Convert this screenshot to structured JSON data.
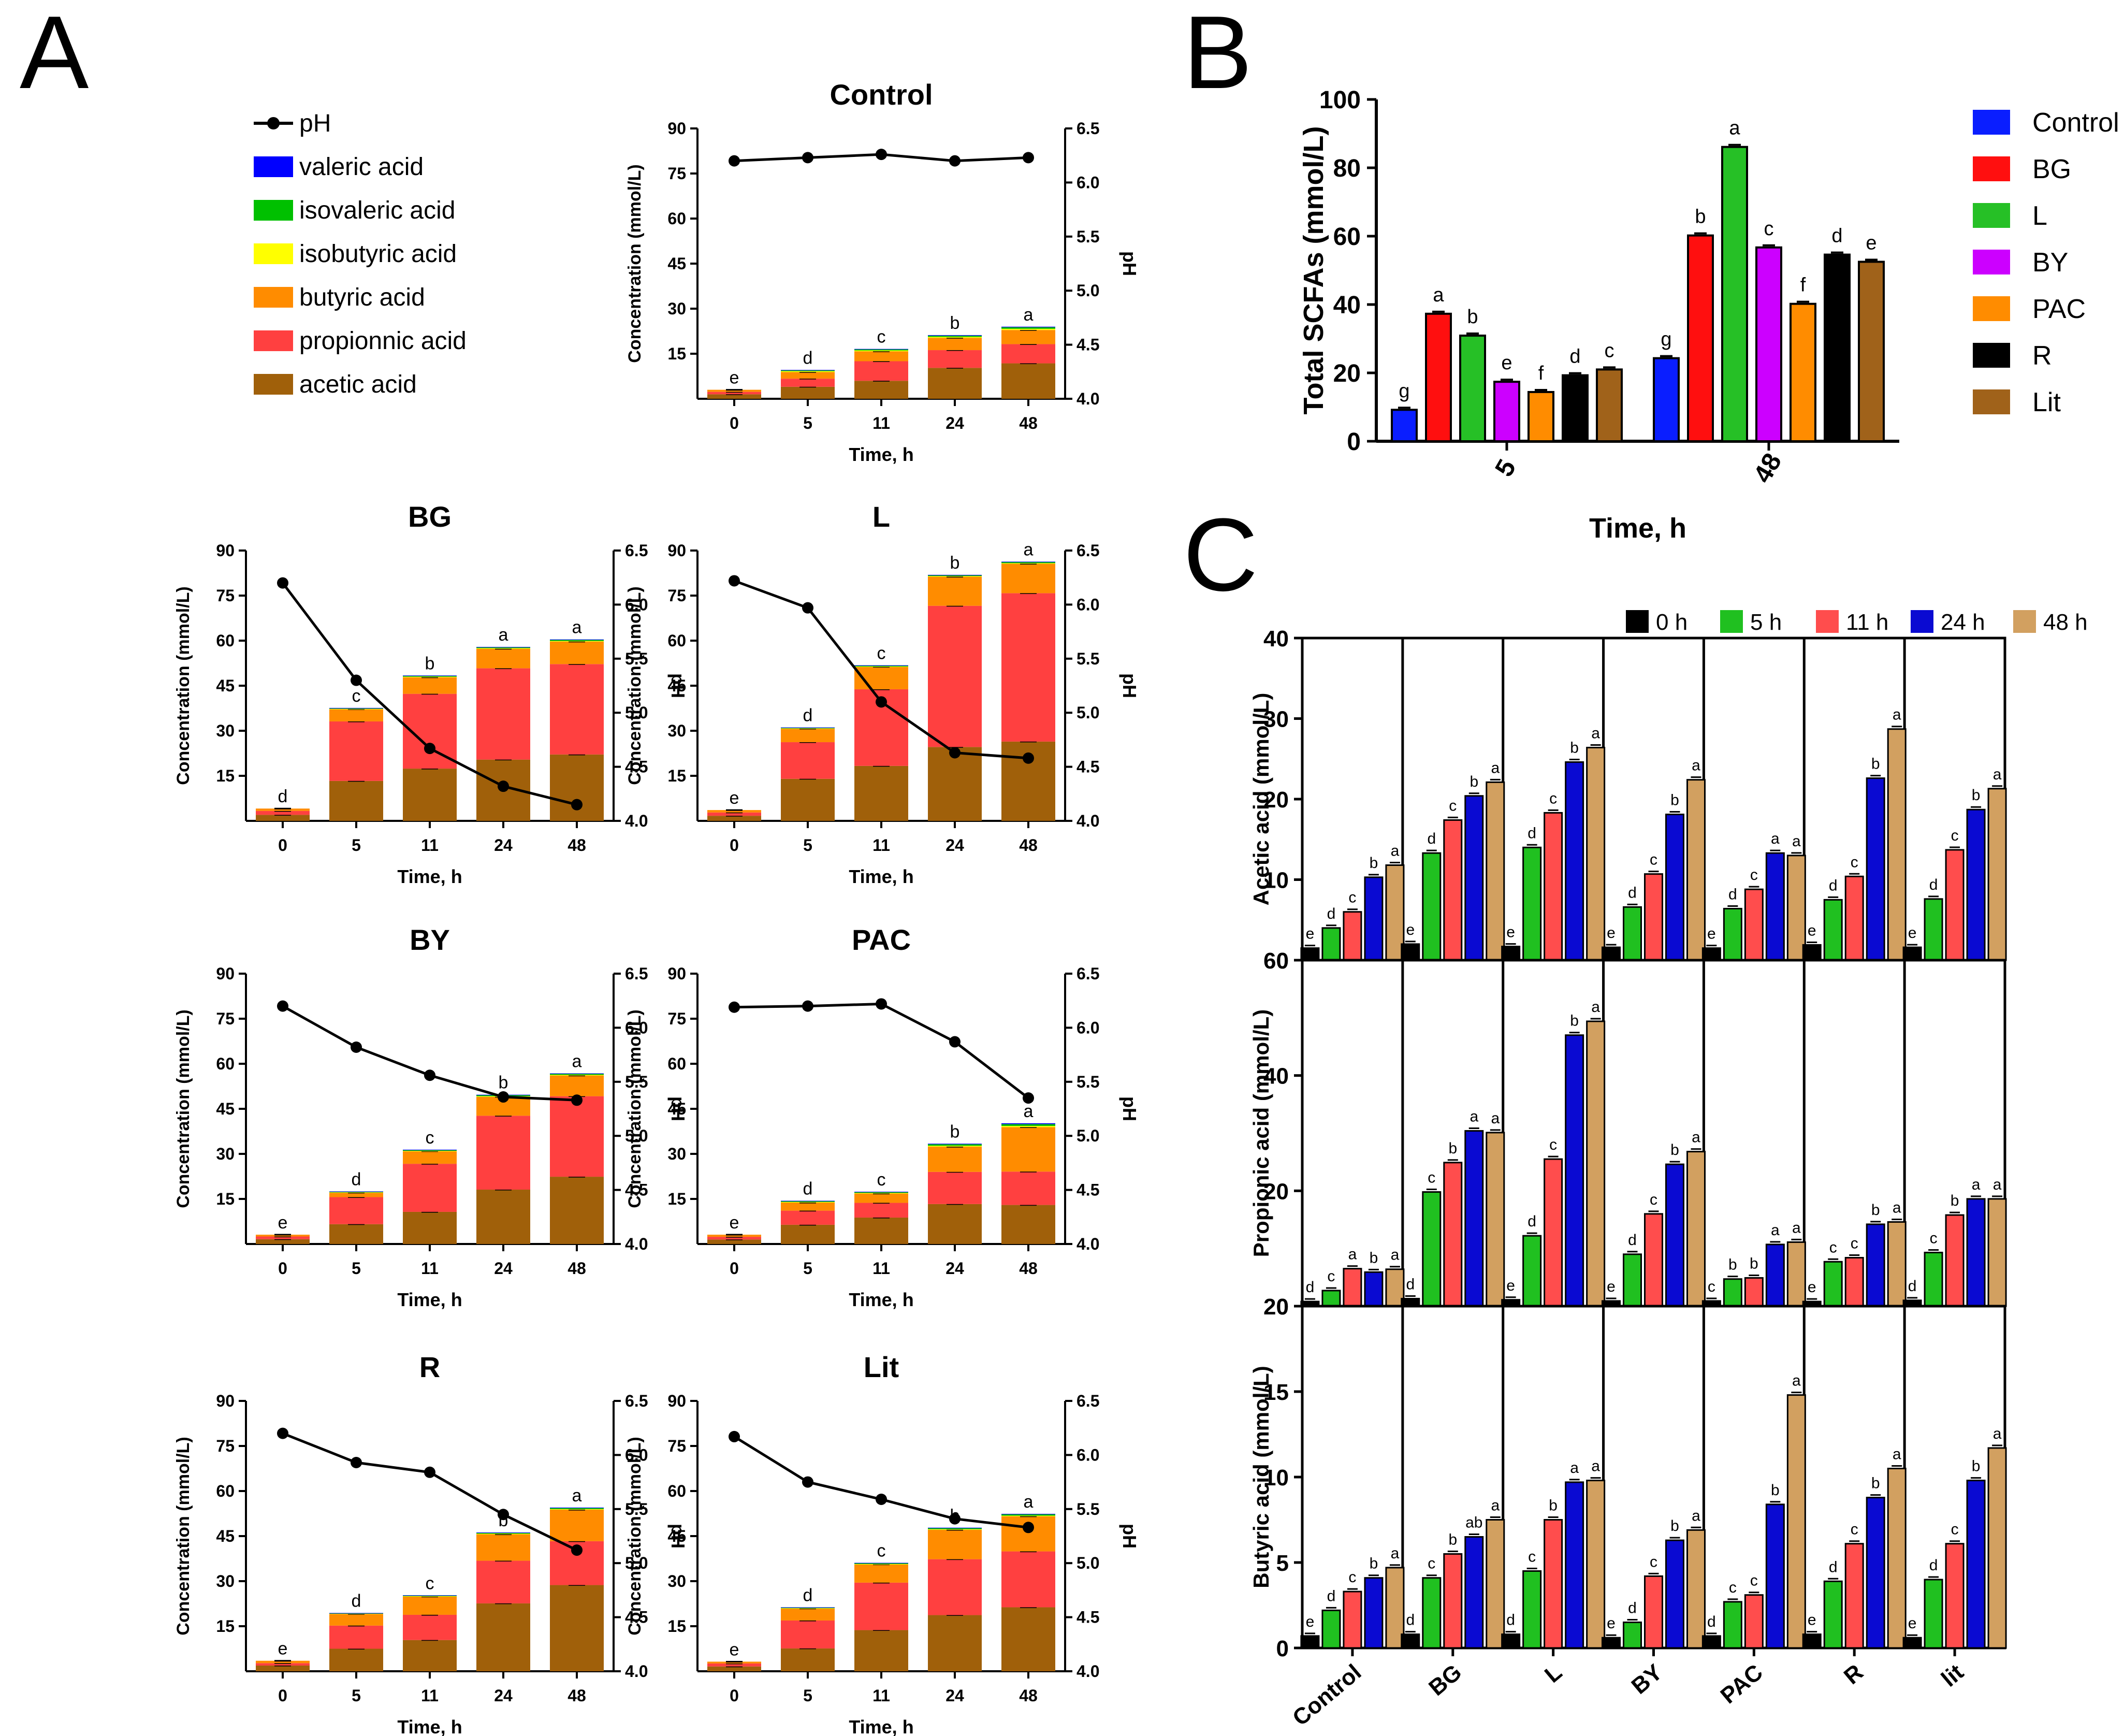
{
  "figure": {
    "panel_labels": [
      "A",
      "B",
      "C"
    ]
  },
  "colors": {
    "valeric": "#0000ff",
    "isovaleric": "#00c000",
    "isobutyric": "#ffff00",
    "butyric": "#ff8c00",
    "propionic": "#ff4040",
    "acetic": "#a0600a",
    "ph": "#000000",
    "B_series": [
      "#0a1eff",
      "#ff0f0f",
      "#26c026",
      "#cc00ff",
      "#ff8c00",
      "#000000",
      "#a0621a"
    ],
    "C_series": [
      "#000000",
      "#20c020",
      "#ff4d4d",
      "#0a0ad2",
      "#d2a060"
    ]
  },
  "legend_A": [
    {
      "key": "ph",
      "label": "pH"
    },
    {
      "key": "valeric",
      "label": "valeric acid"
    },
    {
      "key": "isovaleric",
      "label": "isovaleric acid"
    },
    {
      "key": "isobutyric",
      "label": "isobutyric acid"
    },
    {
      "key": "butyric",
      "label": "butyric acid"
    },
    {
      "key": "propionic",
      "label": "propionnic acid"
    },
    {
      "key": "acetic",
      "label": "acetic acid"
    }
  ],
  "chart_data": [
    {
      "panel": "A",
      "type": "bar",
      "stacked": true,
      "secondary_axis_type": "line",
      "subplots": [
        {
          "title": "Control",
          "categories": [
            "0",
            "5",
            "11",
            "24",
            "48"
          ],
          "acetic": [
            1.5,
            4,
            6,
            10.3,
            11.8
          ],
          "propionic": [
            0.8,
            2.7,
            6.5,
            5.9,
            6.4
          ],
          "butyric": [
            0.7,
            2.2,
            3.3,
            4.1,
            4.7
          ],
          "isobutyric": [
            0,
            0.3,
            0.3,
            0.3,
            0.4
          ],
          "isovaleric": [
            0,
            0.3,
            0.4,
            0.4,
            0.5
          ],
          "valeric": [
            0,
            0.1,
            0.1,
            0.2,
            0.2
          ],
          "letters": [
            "e",
            "d",
            "c",
            "b",
            "a"
          ],
          "ph": [
            6.2,
            6.23,
            6.26,
            6.2,
            6.23
          ]
        },
        {
          "title": "BG",
          "categories": [
            "0",
            "5",
            "11",
            "24",
            "48"
          ],
          "acetic": [
            2,
            13.3,
            17.4,
            20.4,
            22.1
          ],
          "propionic": [
            1.3,
            19.8,
            24.9,
            30.4,
            30.1
          ],
          "butyric": [
            0.8,
            4.1,
            5.5,
            6.5,
            7.5
          ],
          "isobutyric": [
            0,
            0.1,
            0.2,
            0.2,
            0.2
          ],
          "isovaleric": [
            0,
            0.2,
            0.3,
            0.3,
            0.4
          ],
          "valeric": [
            0,
            0.1,
            0.1,
            0.1,
            0.1
          ],
          "letters": [
            "d",
            "c",
            "b",
            "a",
            "a"
          ],
          "ph": [
            6.2,
            5.3,
            4.67,
            4.32,
            4.15
          ]
        },
        {
          "title": "L",
          "categories": [
            "0",
            "5",
            "11",
            "24",
            "48"
          ],
          "acetic": [
            1.7,
            14,
            18.3,
            24.6,
            26.4
          ],
          "propionic": [
            1.1,
            12.2,
            25.5,
            47,
            49.4
          ],
          "butyric": [
            0.8,
            4.5,
            7.5,
            9.7,
            9.8
          ],
          "isobutyric": [
            0,
            0.1,
            0.1,
            0.2,
            0.2
          ],
          "isovaleric": [
            0,
            0.2,
            0.3,
            0.3,
            0.4
          ],
          "valeric": [
            0,
            0.1,
            0.1,
            0.1,
            0.1
          ],
          "letters": [
            "e",
            "d",
            "c",
            "b",
            "a"
          ],
          "ph": [
            6.22,
            5.97,
            5.1,
            4.63,
            4.58
          ]
        },
        {
          "title": "BY",
          "categories": [
            "0",
            "5",
            "11",
            "24",
            "48"
          ],
          "acetic": [
            1.6,
            6.6,
            10.7,
            18.1,
            22.4
          ],
          "propionic": [
            0.9,
            9,
            16,
            24.6,
            26.8
          ],
          "butyric": [
            0.6,
            1.5,
            4.2,
            6.3,
            6.9
          ],
          "isobutyric": [
            0,
            0.1,
            0.1,
            0.2,
            0.2
          ],
          "isovaleric": [
            0,
            0.2,
            0.3,
            0.4,
            0.4
          ],
          "valeric": [
            0,
            0.1,
            0.1,
            0.1,
            0.1
          ],
          "letters": [
            "e",
            "d",
            "c",
            "b",
            "a"
          ],
          "ph": [
            6.2,
            5.82,
            5.56,
            5.36,
            5.33
          ]
        },
        {
          "title": "PAC",
          "categories": [
            "0",
            "5",
            "11",
            "24",
            "48"
          ],
          "acetic": [
            1.5,
            6.4,
            8.8,
            13.3,
            13
          ],
          "propionic": [
            0.9,
            4.7,
            4.9,
            10.7,
            11.1
          ],
          "butyric": [
            0.7,
            2.7,
            3.1,
            8.4,
            14.8
          ],
          "isobutyric": [
            0,
            0.2,
            0.2,
            0.3,
            0.4
          ],
          "isovaleric": [
            0,
            0.3,
            0.3,
            0.5,
            0.6
          ],
          "valeric": [
            0,
            0.1,
            0.1,
            0.2,
            0.3
          ],
          "letters": [
            "e",
            "d",
            "c",
            "b",
            "a"
          ],
          "ph": [
            6.19,
            6.2,
            6.22,
            5.87,
            5.35
          ]
        },
        {
          "title": "R",
          "categories": [
            "0",
            "5",
            "11",
            "24",
            "48"
          ],
          "acetic": [
            1.9,
            7.5,
            10.4,
            22.6,
            28.7
          ],
          "propionic": [
            0.8,
            7.7,
            8.4,
            14.2,
            14.6
          ],
          "butyric": [
            0.8,
            3.9,
            6.1,
            8.8,
            10.5
          ],
          "isobutyric": [
            0,
            0.1,
            0.1,
            0.2,
            0.2
          ],
          "isovaleric": [
            0,
            0.1,
            0.2,
            0.3,
            0.4
          ],
          "valeric": [
            0,
            0.1,
            0.1,
            0.1,
            0.1
          ],
          "letters": [
            "e",
            "d",
            "c",
            "b",
            "a"
          ],
          "ph": [
            6.2,
            5.93,
            5.84,
            5.45,
            5.12
          ]
        },
        {
          "title": "Lit",
          "categories": [
            "0",
            "5",
            "11",
            "24",
            "48"
          ],
          "acetic": [
            1.6,
            7.6,
            13.7,
            18.7,
            21.3
          ],
          "propionic": [
            1,
            9.3,
            15.8,
            18.6,
            18.6
          ],
          "butyric": [
            0.6,
            4,
            6.1,
            9.8,
            11.7
          ],
          "isobutyric": [
            0,
            0.1,
            0.1,
            0.2,
            0.2
          ],
          "isovaleric": [
            0,
            0.2,
            0.3,
            0.4,
            0.5
          ],
          "valeric": [
            0,
            0.1,
            0.1,
            0.1,
            0.1
          ],
          "letters": [
            "e",
            "d",
            "c",
            "b",
            "a"
          ],
          "ph": [
            6.17,
            5.75,
            5.59,
            5.41,
            5.33
          ]
        }
      ],
      "xlabel": "Time, h",
      "ylabel": "Concentration (mmol/L)",
      "ylim": [
        0,
        90
      ],
      "yticks": [
        15,
        30,
        45,
        60,
        75,
        90
      ],
      "y2label": "pH",
      "y2lim": [
        4.0,
        6.5
      ],
      "y2ticks": [
        "4.0",
        "4.5",
        "5.0",
        "5.5",
        "6.0",
        "6.5"
      ]
    },
    {
      "panel": "B",
      "type": "bar",
      "title": "",
      "categories": [
        "5",
        "48"
      ],
      "series": [
        {
          "name": "Control",
          "values": [
            9.2,
            24.3
          ],
          "letters": [
            "g",
            "g"
          ]
        },
        {
          "name": "BG",
          "values": [
            37.3,
            60.2
          ],
          "letters": [
            "a",
            "b"
          ]
        },
        {
          "name": "L",
          "values": [
            30.9,
            86.1
          ],
          "letters": [
            "b",
            "a"
          ]
        },
        {
          "name": "BY",
          "values": [
            17.4,
            56.7
          ],
          "letters": [
            "e",
            "c"
          ]
        },
        {
          "name": "PAC",
          "values": [
            14.4,
            40.2
          ],
          "letters": [
            "f",
            "f"
          ]
        },
        {
          "name": "R",
          "values": [
            19.3,
            54.6
          ],
          "letters": [
            "d",
            "d"
          ]
        },
        {
          "name": "Lit",
          "values": [
            21,
            52.5
          ],
          "letters": [
            "c",
            "e"
          ]
        }
      ],
      "xlabel": "Time, h",
      "ylabel": "Total SCFAs (mmol/L)",
      "ylim": [
        0,
        100
      ],
      "yticks": [
        0,
        20,
        40,
        60,
        80,
        100
      ]
    },
    {
      "panel": "C",
      "type": "bar",
      "groups": [
        "Control",
        "BG",
        "L",
        "BY",
        "PAC",
        "R",
        "lit"
      ],
      "series_names": [
        "0 h",
        "5 h",
        "11 h",
        "24 h",
        "48 h"
      ],
      "subplots": [
        {
          "ylabel": "Acetic acid (mmol/L)",
          "ylim": [
            0,
            40
          ],
          "yticks": [
            0,
            10,
            20,
            30,
            40
          ],
          "values": [
            [
              1.5,
              4,
              6,
              10.3,
              11.8
            ],
            [
              2,
              13.3,
              17.4,
              20.4,
              22.1
            ],
            [
              1.7,
              14,
              18.3,
              24.6,
              26.4
            ],
            [
              1.6,
              6.6,
              10.7,
              18.1,
              22.4
            ],
            [
              1.5,
              6.4,
              8.8,
              13.3,
              13
            ],
            [
              1.9,
              7.5,
              10.4,
              22.6,
              28.7
            ],
            [
              1.6,
              7.6,
              13.7,
              18.7,
              21.3
            ]
          ],
          "letters": [
            [
              "e",
              "d",
              "c",
              "b",
              "a"
            ],
            [
              "e",
              "d",
              "c",
              "b",
              "a"
            ],
            [
              "e",
              "d",
              "c",
              "b",
              "a"
            ],
            [
              "e",
              "d",
              "c",
              "b",
              "a"
            ],
            [
              "e",
              "d",
              "c",
              "a",
              "a"
            ],
            [
              "e",
              "d",
              "c",
              "b",
              "a"
            ],
            [
              "e",
              "d",
              "c",
              "b",
              "a"
            ]
          ]
        },
        {
          "ylabel": "Propionic acid (mmol/L)",
          "ylim": [
            0,
            60
          ],
          "yticks": [
            0,
            20,
            40,
            60
          ],
          "values": [
            [
              0.8,
              2.7,
              6.5,
              5.9,
              6.4
            ],
            [
              1.3,
              19.8,
              24.9,
              30.4,
              30.1
            ],
            [
              1.1,
              12.2,
              25.5,
              47,
              49.4
            ],
            [
              0.9,
              9,
              16,
              24.6,
              26.8
            ],
            [
              0.9,
              4.7,
              4.9,
              10.7,
              11.1
            ],
            [
              0.8,
              7.7,
              8.4,
              14.2,
              14.6
            ],
            [
              1,
              9.3,
              15.8,
              18.6,
              18.6
            ]
          ],
          "letters": [
            [
              "d",
              "c",
              "a",
              "b",
              "a"
            ],
            [
              "d",
              "c",
              "b",
              "a",
              "a"
            ],
            [
              "e",
              "d",
              "c",
              "b",
              "a"
            ],
            [
              "e",
              "d",
              "c",
              "b",
              "a"
            ],
            [
              "c",
              "b",
              "b",
              "a",
              "a"
            ],
            [
              "e",
              "c",
              "c",
              "b",
              "a"
            ],
            [
              "d",
              "c",
              "b",
              "a",
              "a"
            ]
          ]
        },
        {
          "ylabel": "Butyric acid (mmol/L)",
          "ylim": [
            0,
            20
          ],
          "yticks": [
            0,
            5,
            10,
            15,
            20
          ],
          "values": [
            [
              0.7,
              2.2,
              3.3,
              4.1,
              4.7
            ],
            [
              0.8,
              4.1,
              5.5,
              6.5,
              7.5
            ],
            [
              0.8,
              4.5,
              7.5,
              9.7,
              9.8
            ],
            [
              0.6,
              1.5,
              4.2,
              6.3,
              6.9
            ],
            [
              0.7,
              2.7,
              3.1,
              8.4,
              14.8
            ],
            [
              0.8,
              3.9,
              6.1,
              8.8,
              10.5
            ],
            [
              0.6,
              4,
              6.1,
              9.8,
              11.7
            ]
          ],
          "letters": [
            [
              "e",
              "d",
              "c",
              "b",
              "a"
            ],
            [
              "d",
              "c",
              "b",
              "ab",
              "a"
            ],
            [
              "d",
              "c",
              "b",
              "a",
              "a"
            ],
            [
              "e",
              "d",
              "c",
              "b",
              "a"
            ],
            [
              "d",
              "c",
              "c",
              "b",
              "a"
            ],
            [
              "e",
              "d",
              "c",
              "b",
              "a"
            ],
            [
              "e",
              "d",
              "c",
              "b",
              "a"
            ]
          ]
        }
      ]
    }
  ]
}
